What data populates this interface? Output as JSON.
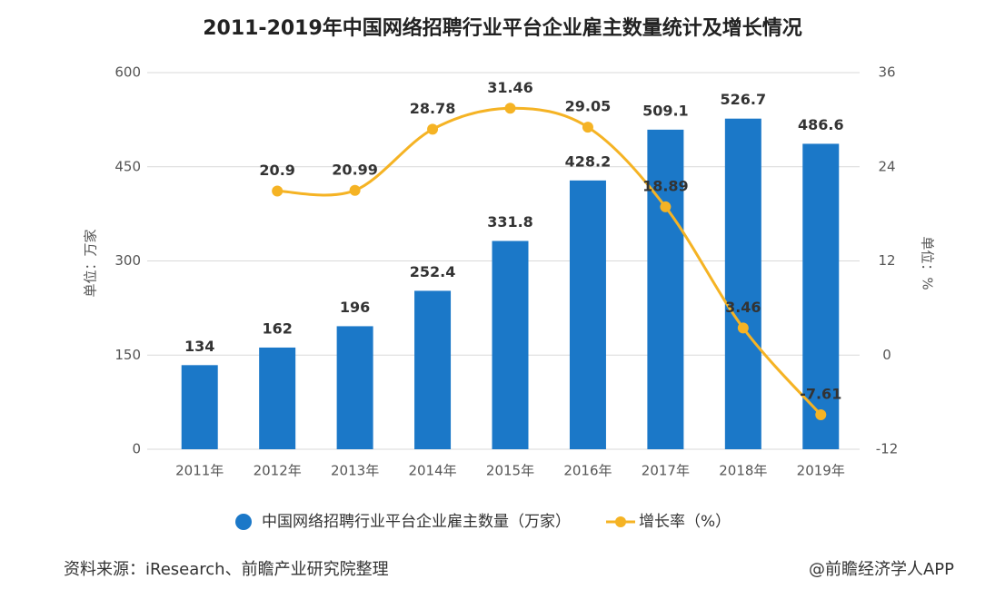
{
  "chart_data": {
    "type": "bar-line",
    "title": "2011-2019年中国网络招聘行业平台企业雇主数量统计及增长情况",
    "categories": [
      "2011年",
      "2012年",
      "2013年",
      "2014年",
      "2015年",
      "2016年",
      "2017年",
      "2018年",
      "2019年"
    ],
    "series": [
      {
        "name": "中国网络招聘行业平台企业雇主数量（万家）",
        "type": "bar",
        "color": "#1b78c8",
        "values": [
          134,
          162,
          196,
          252.4,
          331.8,
          428.2,
          509.1,
          526.7,
          486.6
        ]
      },
      {
        "name": "增长率（%）",
        "type": "line",
        "axis": "y2",
        "color": "#f5b324",
        "values": [
          null,
          20.9,
          20.99,
          28.78,
          31.46,
          29.05,
          18.89,
          3.46,
          -7.61
        ]
      }
    ],
    "ylim": [
      0,
      600
    ],
    "yticks": [
      0,
      150,
      300,
      450,
      600
    ],
    "y2lim": [
      -12,
      36
    ],
    "y2ticks": [
      -12,
      0,
      12,
      24,
      36
    ],
    "ylabel": "单位：万家",
    "y2label": "单位：%",
    "grid": true,
    "source": "资料来源：iResearch、前瞻产业研究院整理",
    "credit": "@前瞻经济学人APP"
  }
}
